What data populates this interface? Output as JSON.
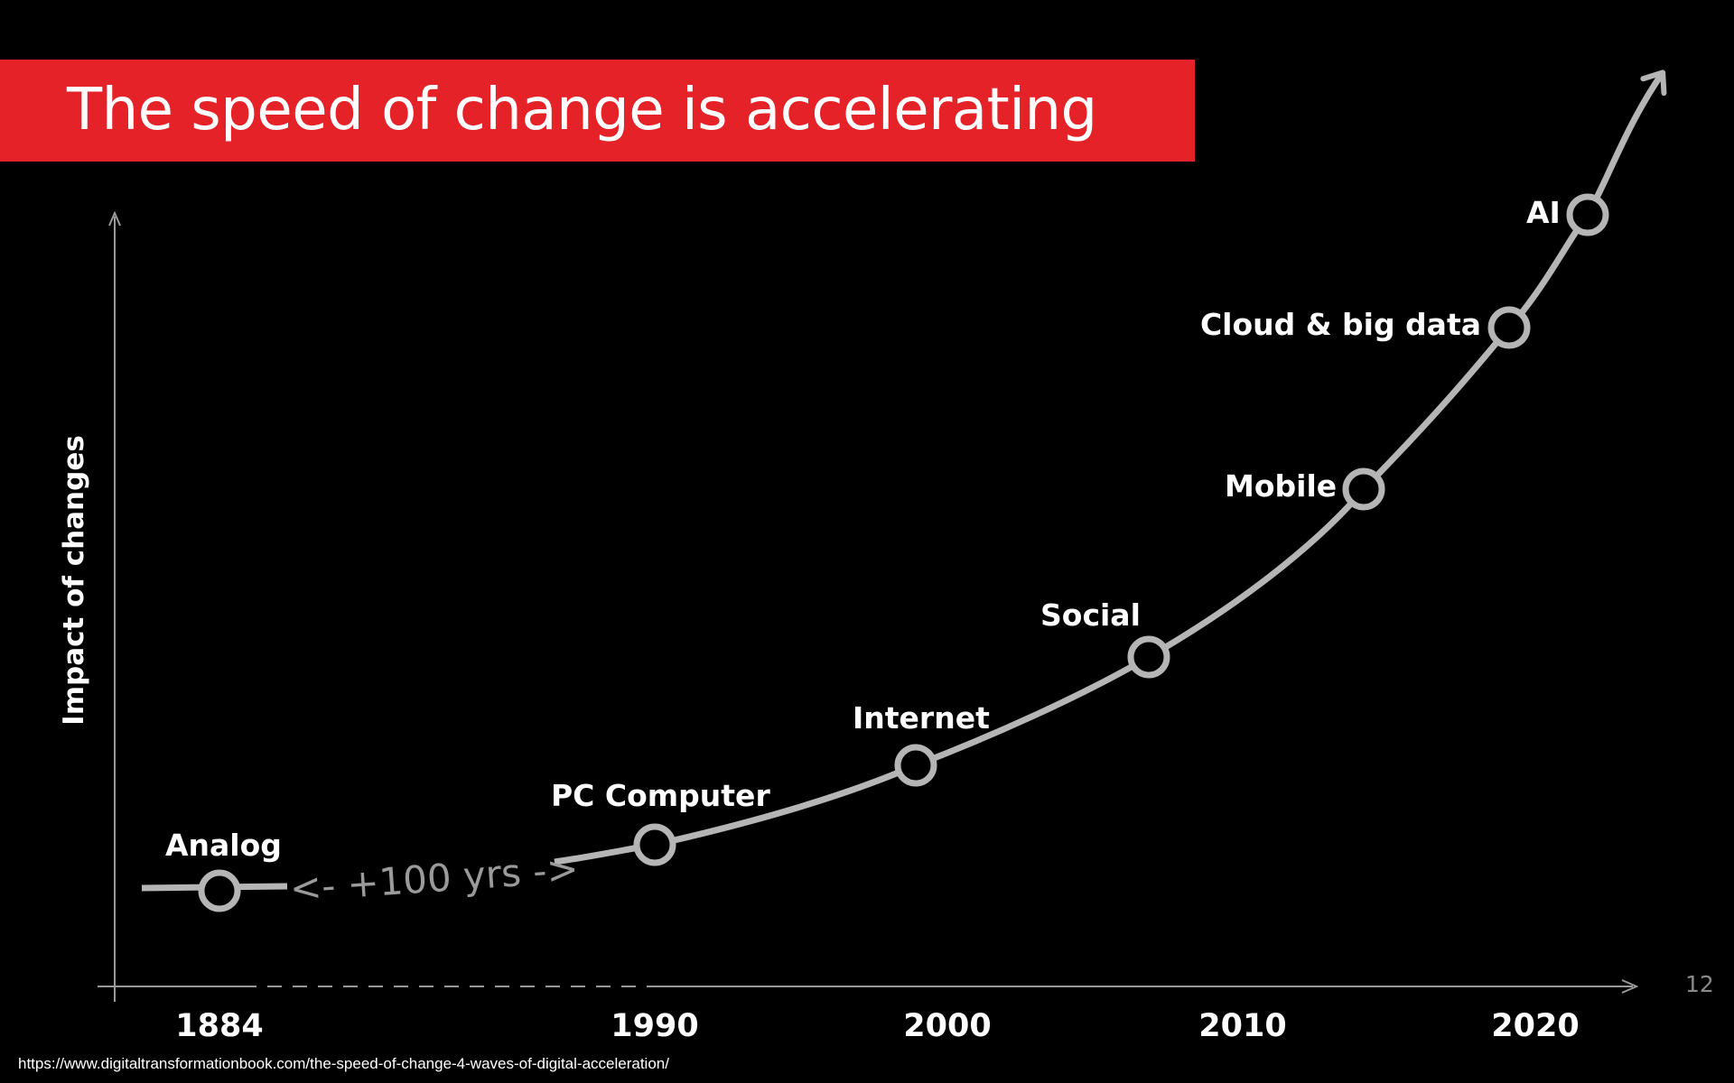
{
  "slide": {
    "title": "The speed of change is accelerating",
    "page_number": "12",
    "source_url": "https://www.digitaltransformationbook.com/the-speed-of-change-4-waves-of-digital-acceleration/"
  },
  "colors": {
    "background": "#000000",
    "banner": "#e42228",
    "curve": "#b5b5b5",
    "axis": "#9a9a9a",
    "text": "#ffffff"
  },
  "diagram": {
    "y_axis_label": "Impact of changes",
    "gap_label": "<- +100 yrs ->",
    "milestones": [
      {
        "label": "Analog"
      },
      {
        "label": "PC Computer"
      },
      {
        "label": "Internet"
      },
      {
        "label": "Social"
      },
      {
        "label": "Mobile"
      },
      {
        "label": "Cloud & big data"
      },
      {
        "label": "AI"
      }
    ],
    "years": [
      "1884",
      "1990",
      "2000",
      "2010",
      "2020"
    ]
  }
}
